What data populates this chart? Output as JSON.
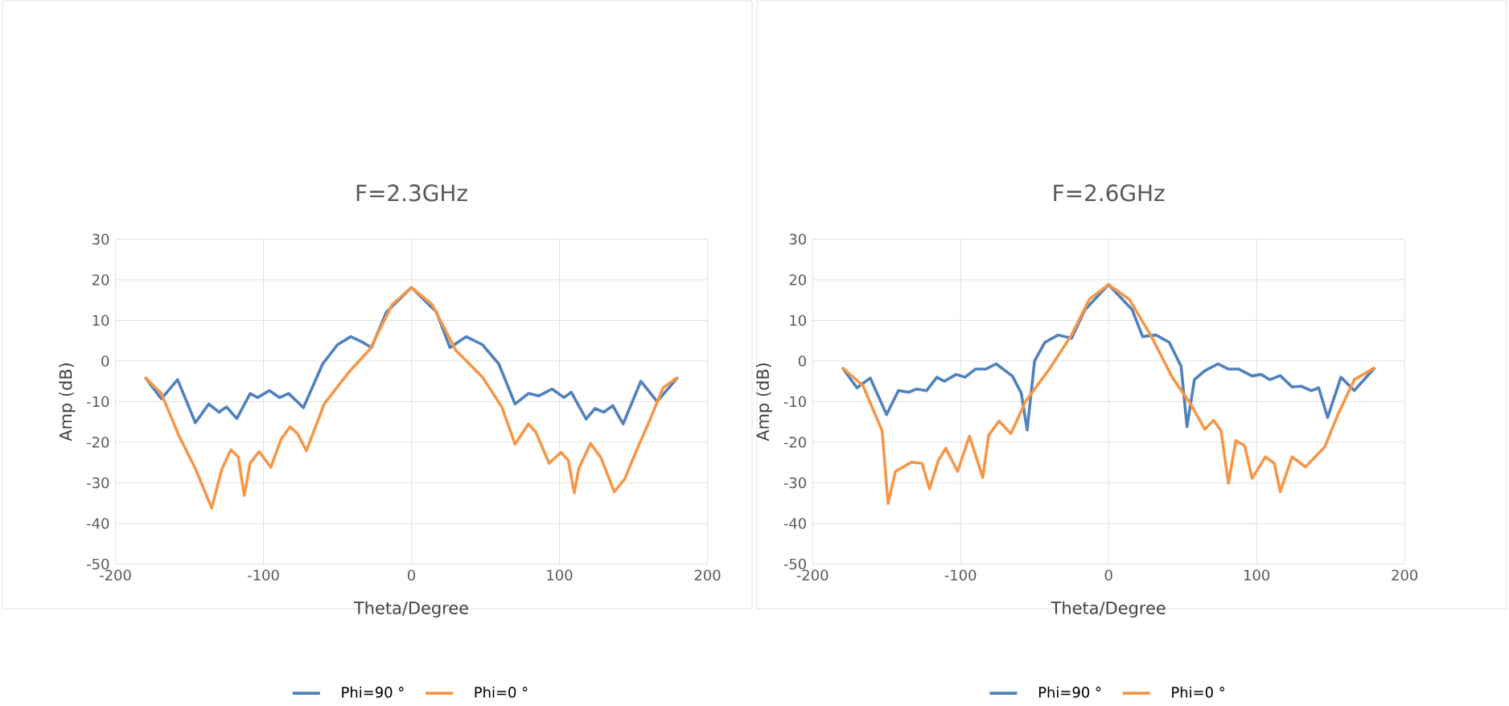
{
  "chart_data": [
    {
      "type": "line",
      "title": "F=2.3GHz",
      "xlabel": "Theta/Degree",
      "ylabel": "Amp (dB)",
      "xlim": [
        -200,
        200
      ],
      "ylim": [
        -50,
        30
      ],
      "xticks": [
        -200,
        -100,
        0,
        100,
        200
      ],
      "yticks": [
        -50,
        -40,
        -30,
        -20,
        -10,
        0,
        10,
        20,
        30
      ],
      "grid": true,
      "legend": "bottom",
      "marker": "none",
      "line_style": "solid",
      "series": [
        {
          "name": "Phi=90 °",
          "color": "#4f81bd",
          "x": [
            -180,
            -169,
            -158,
            -146,
            -137,
            -130,
            -125,
            -118,
            -109,
            -104,
            -96,
            -89,
            -83,
            -73,
            -60,
            -50,
            -41,
            -33,
            -27,
            -17,
            0,
            17,
            26,
            37,
            48,
            59,
            70,
            79,
            86,
            95,
            103,
            108,
            118,
            124,
            130,
            136,
            143,
            155,
            166,
            180
          ],
          "values": [
            -4,
            -9.3,
            -4.6,
            -15.2,
            -10.6,
            -12.6,
            -11.3,
            -14.2,
            -8,
            -9,
            -7.3,
            -9,
            -8,
            -11.5,
            -0.7,
            4,
            6,
            4.6,
            3.3,
            12,
            18.1,
            12,
            3.3,
            6,
            4,
            -0.7,
            -10.6,
            -8,
            -8.6,
            -6.9,
            -9,
            -7.7,
            -14.3,
            -11.7,
            -12.6,
            -11,
            -15.5,
            -5,
            -10,
            -4
          ]
        },
        {
          "name": "Phi=0 °",
          "color": "#f79646",
          "x": [
            -180,
            -169,
            -157,
            -146,
            -135,
            -128,
            -122,
            -117,
            -113,
            -109,
            -103,
            -95,
            -88,
            -82,
            -77,
            -71,
            -59,
            -42,
            -28,
            -13,
            0,
            14,
            30,
            48,
            61,
            70,
            79,
            84,
            93,
            101,
            106,
            110,
            113,
            121,
            128,
            137,
            144,
            153,
            161,
            170,
            180
          ],
          "values": [
            -4,
            -8,
            -18.5,
            -26.5,
            -36.2,
            -26.5,
            -21.9,
            -23.6,
            -33.1,
            -25.2,
            -22.3,
            -26.2,
            -19.2,
            -16.2,
            -17.9,
            -22.1,
            -10.6,
            -2.6,
            2.9,
            13.9,
            18.1,
            13.9,
            2.6,
            -4,
            -11.3,
            -20.5,
            -15.5,
            -17.5,
            -25.2,
            -22.5,
            -24.5,
            -32.5,
            -26.5,
            -20.3,
            -23.8,
            -32.2,
            -29.1,
            -21.2,
            -14.6,
            -6.6,
            -4
          ]
        }
      ]
    },
    {
      "type": "line",
      "title": "F=2.6GHz",
      "xlabel": "Theta/Degree",
      "ylabel": "Amp (dB)",
      "xlim": [
        -200,
        200
      ],
      "ylim": [
        -50,
        30
      ],
      "xticks": [
        -200,
        -100,
        0,
        100,
        200
      ],
      "yticks": [
        -50,
        -40,
        -30,
        -20,
        -10,
        0,
        10,
        20,
        30
      ],
      "grid": true,
      "legend": "bottom",
      "marker": "none",
      "line_style": "solid",
      "series": [
        {
          "name": "Phi=90 °",
          "color": "#4f81bd",
          "x": [
            -180,
            -170,
            -161,
            -150,
            -142,
            -135,
            -130,
            -123,
            -116,
            -111,
            -103,
            -97,
            -90,
            -83,
            -76,
            -65,
            -59,
            -55,
            -50,
            -43,
            -34,
            -25,
            -16,
            0,
            16,
            23,
            32,
            41,
            49,
            53,
            58,
            65,
            74,
            81,
            88,
            97,
            103,
            109,
            116,
            124,
            130,
            137,
            142,
            148,
            157,
            166,
            180
          ],
          "values": [
            -1.6,
            -6.6,
            -4.2,
            -13.2,
            -7.3,
            -7.7,
            -6.9,
            -7.3,
            -4,
            -5,
            -3.3,
            -4,
            -2,
            -2,
            -0.7,
            -3.7,
            -7.9,
            -17,
            0,
            4.6,
            6.4,
            5.6,
            12.6,
            18.8,
            12.6,
            6,
            6.4,
            4.6,
            -1.3,
            -16.2,
            -4.6,
            -2.4,
            -0.7,
            -2,
            -2,
            -3.7,
            -3.3,
            -4.6,
            -3.6,
            -6.4,
            -6.2,
            -7.3,
            -6.6,
            -13.9,
            -4,
            -7.3,
            -1.6
          ]
        },
        {
          "name": "Phi=0 °",
          "color": "#f79646",
          "x": [
            -180,
            -166,
            -153,
            -149,
            -144,
            -133,
            -126,
            -121,
            -115,
            -110,
            -102,
            -94,
            -85,
            -81,
            -74,
            -66,
            -56,
            -40,
            -25,
            -13,
            0,
            14,
            29,
            43,
            56,
            65,
            71,
            76,
            81,
            86,
            92,
            97,
            106,
            112,
            116,
            124,
            133,
            146,
            155,
            166,
            180
          ],
          "values": [
            -1.6,
            -6,
            -17.2,
            -35.1,
            -27.2,
            -24.9,
            -25.2,
            -31.5,
            -24.5,
            -21.5,
            -27.2,
            -18.5,
            -28.7,
            -18.3,
            -14.8,
            -17.9,
            -9.9,
            -2,
            6.4,
            15.2,
            18.8,
            15.2,
            6,
            -4,
            -10.9,
            -16.8,
            -14.6,
            -17.2,
            -30.1,
            -19.6,
            -20.9,
            -28.9,
            -23.6,
            -25.2,
            -32.2,
            -23.6,
            -26.1,
            -21.2,
            -13.2,
            -4.6,
            -1.6
          ]
        }
      ]
    }
  ]
}
